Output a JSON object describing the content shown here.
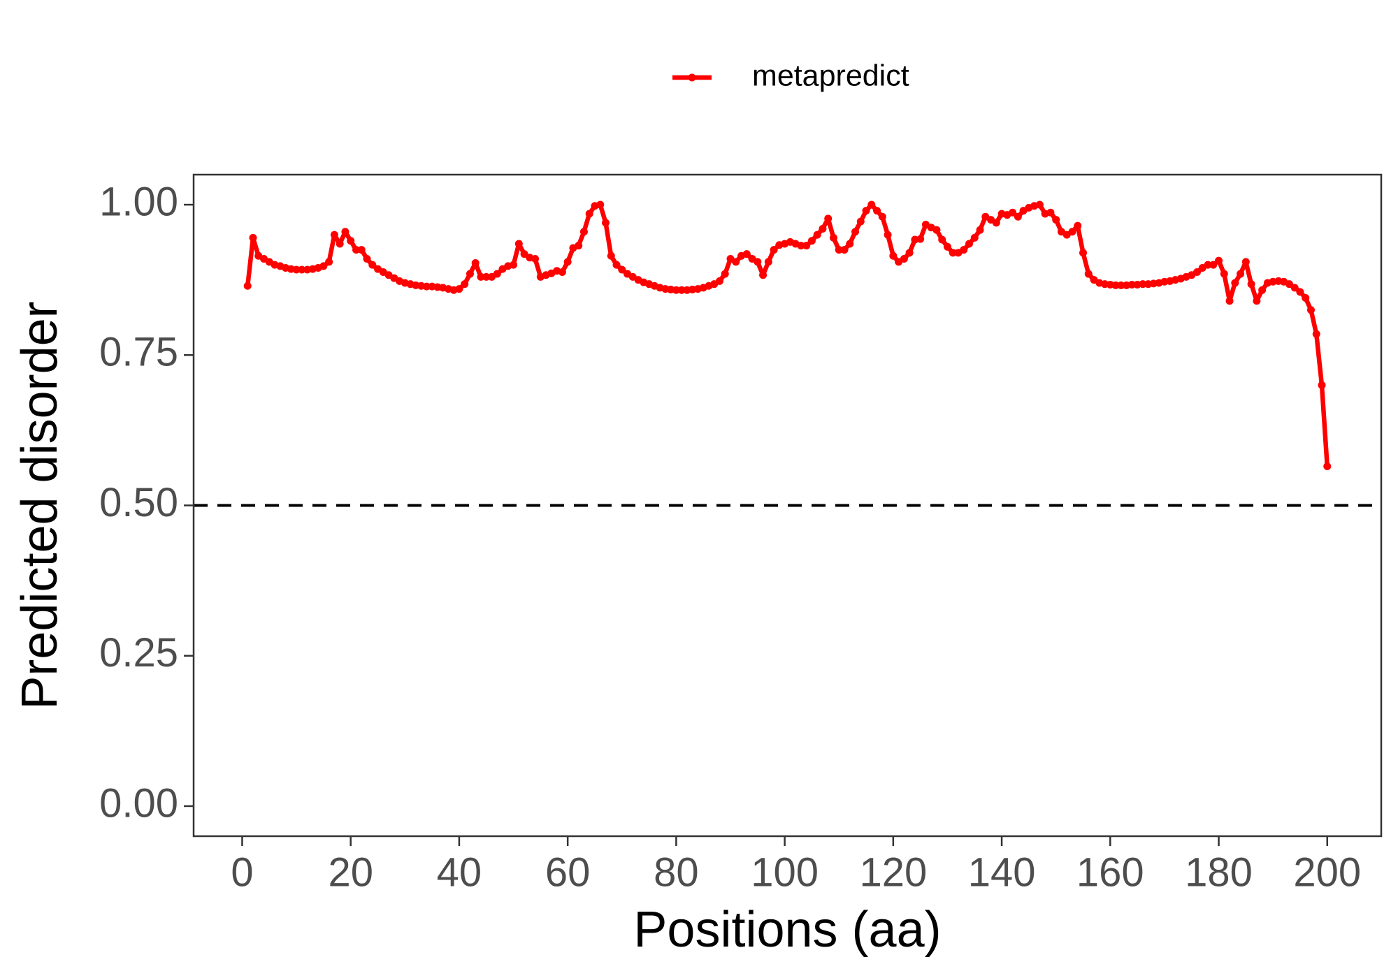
{
  "chart_data": {
    "type": "line",
    "x_label": "Positions (aa)",
    "y_label": "Predicted disorder",
    "legend_position": "top",
    "grid": false,
    "xlim": [
      -8.95,
      209.95
    ],
    "ylim": [
      -0.05,
      1.05
    ],
    "xticks": [
      0,
      20,
      40,
      60,
      80,
      100,
      120,
      140,
      160,
      180,
      200
    ],
    "yticks": [
      {
        "value": 0,
        "label": "0.00"
      },
      {
        "value": 0.25,
        "label": "0.25"
      },
      {
        "value": 0.5,
        "label": "0.50"
      },
      {
        "value": 0.75,
        "label": "0.75"
      },
      {
        "value": 1,
        "label": "1.00"
      }
    ],
    "hline": 0.5,
    "x": [
      1,
      2,
      3,
      4,
      5,
      6,
      7,
      8,
      9,
      10,
      11,
      12,
      13,
      14,
      15,
      16,
      17,
      18,
      19,
      20,
      21,
      22,
      23,
      24,
      25,
      26,
      27,
      28,
      29,
      30,
      31,
      32,
      33,
      34,
      35,
      36,
      37,
      38,
      39,
      40,
      41,
      42,
      43,
      44,
      45,
      46,
      47,
      48,
      49,
      50,
      51,
      52,
      53,
      54,
      55,
      56,
      57,
      58,
      59,
      60,
      61,
      62,
      63,
      64,
      65,
      66,
      67,
      68,
      69,
      70,
      71,
      72,
      73,
      74,
      75,
      76,
      77,
      78,
      79,
      80,
      81,
      82,
      83,
      84,
      85,
      86,
      87,
      88,
      89,
      90,
      91,
      92,
      93,
      94,
      95,
      96,
      97,
      98,
      99,
      100,
      101,
      102,
      103,
      104,
      105,
      106,
      107,
      108,
      109,
      110,
      111,
      112,
      113,
      114,
      115,
      116,
      117,
      118,
      119,
      120,
      121,
      122,
      123,
      124,
      125,
      126,
      127,
      128,
      129,
      130,
      131,
      132,
      133,
      134,
      135,
      136,
      137,
      138,
      139,
      140,
      141,
      142,
      143,
      144,
      145,
      146,
      147,
      148,
      149,
      150,
      151,
      152,
      153,
      154,
      155,
      156,
      157,
      158,
      159,
      160,
      161,
      162,
      163,
      164,
      165,
      166,
      167,
      168,
      169,
      170,
      171,
      172,
      173,
      174,
      175,
      176,
      177,
      178,
      179,
      180,
      181,
      182,
      183,
      184,
      185,
      186,
      187,
      188,
      189,
      190,
      191,
      192,
      193,
      194,
      195,
      196,
      197,
      198,
      199,
      200
    ],
    "series": [
      {
        "name": "metapredict",
        "color": "#ff0000",
        "values": [
          0.865,
          0.945,
          0.915,
          0.91,
          0.905,
          0.9,
          0.898,
          0.895,
          0.893,
          0.892,
          0.892,
          0.892,
          0.893,
          0.895,
          0.898,
          0.905,
          0.95,
          0.935,
          0.955,
          0.94,
          0.925,
          0.925,
          0.91,
          0.9,
          0.893,
          0.888,
          0.883,
          0.878,
          0.873,
          0.87,
          0.868,
          0.866,
          0.865,
          0.864,
          0.864,
          0.863,
          0.862,
          0.86,
          0.858,
          0.86,
          0.868,
          0.885,
          0.903,
          0.88,
          0.88,
          0.88,
          0.885,
          0.893,
          0.898,
          0.9,
          0.935,
          0.918,
          0.912,
          0.91,
          0.88,
          0.883,
          0.886,
          0.89,
          0.888,
          0.905,
          0.928,
          0.932,
          0.955,
          0.985,
          0.998,
          1.0,
          0.97,
          0.915,
          0.9,
          0.892,
          0.885,
          0.88,
          0.875,
          0.871,
          0.868,
          0.865,
          0.862,
          0.86,
          0.859,
          0.858,
          0.858,
          0.858,
          0.859,
          0.86,
          0.862,
          0.865,
          0.868,
          0.873,
          0.885,
          0.91,
          0.905,
          0.915,
          0.918,
          0.91,
          0.905,
          0.883,
          0.905,
          0.925,
          0.933,
          0.935,
          0.938,
          0.935,
          0.932,
          0.932,
          0.94,
          0.95,
          0.96,
          0.977,
          0.945,
          0.925,
          0.925,
          0.935,
          0.955,
          0.972,
          0.99,
          1.0,
          0.99,
          0.98,
          0.95,
          0.915,
          0.905,
          0.91,
          0.92,
          0.942,
          0.943,
          0.967,
          0.962,
          0.958,
          0.942,
          0.93,
          0.92,
          0.92,
          0.925,
          0.935,
          0.945,
          0.958,
          0.98,
          0.975,
          0.97,
          0.985,
          0.983,
          0.987,
          0.98,
          0.99,
          0.995,
          0.998,
          1.0,
          0.985,
          0.987,
          0.975,
          0.955,
          0.95,
          0.955,
          0.965,
          0.92,
          0.885,
          0.875,
          0.87,
          0.868,
          0.867,
          0.866,
          0.866,
          0.866,
          0.867,
          0.867,
          0.868,
          0.868,
          0.869,
          0.87,
          0.872,
          0.873,
          0.875,
          0.877,
          0.88,
          0.883,
          0.888,
          0.895,
          0.9,
          0.9,
          0.907,
          0.885,
          0.84,
          0.87,
          0.885,
          0.905,
          0.868,
          0.84,
          0.858,
          0.87,
          0.872,
          0.873,
          0.872,
          0.868,
          0.862,
          0.855,
          0.845,
          0.825,
          0.785,
          0.7,
          0.565
        ]
      }
    ]
  }
}
